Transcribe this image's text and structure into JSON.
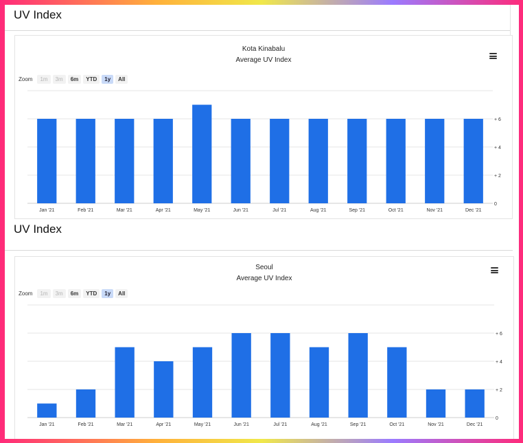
{
  "panels": [
    {
      "heading": "UV Index",
      "chart_title": "Kota Kinabalu",
      "chart_subtitle": "Average UV Index",
      "zoom": {
        "label": "Zoom",
        "buttons": [
          {
            "label": "1m",
            "state": "disabled"
          },
          {
            "label": "3m",
            "state": "disabled"
          },
          {
            "label": "6m",
            "state": "normal"
          },
          {
            "label": "YTD",
            "state": "normal"
          },
          {
            "label": "1y",
            "state": "active"
          },
          {
            "label": "All",
            "state": "normal"
          }
        ]
      }
    },
    {
      "heading": "UV Index",
      "chart_title": "Seoul",
      "chart_subtitle": "Average UV Index",
      "zoom": {
        "label": "Zoom",
        "buttons": [
          {
            "label": "1m",
            "state": "disabled"
          },
          {
            "label": "3m",
            "state": "disabled"
          },
          {
            "label": "6m",
            "state": "normal"
          },
          {
            "label": "YTD",
            "state": "normal"
          },
          {
            "label": "1y",
            "state": "active"
          },
          {
            "label": "All",
            "state": "normal"
          }
        ]
      }
    }
  ],
  "menu_icon": "hamburger-menu-icon",
  "colors": {
    "bar": "#1f6fe6",
    "grid": "#e6e6e6",
    "axis": "#cccccc"
  },
  "chart_data": [
    {
      "type": "bar",
      "title": "Kota Kinabalu",
      "subtitle": "Average UV Index",
      "categories": [
        "Jan '21",
        "Feb '21",
        "Mar '21",
        "Apr '21",
        "May '21",
        "Jun '21",
        "Jul '21",
        "Aug '21",
        "Sep '21",
        "Oct '21",
        "Nov '21",
        "Dec '21"
      ],
      "series": [
        {
          "name": "Average UV Index",
          "values": [
            6,
            6,
            6,
            6,
            7,
            6,
            6,
            6,
            6,
            6,
            6,
            6
          ]
        }
      ],
      "yticks": [
        {
          "value": 0,
          "label": "0"
        },
        {
          "value": 2,
          "label": "+ 2"
        },
        {
          "value": 4,
          "label": "+ 4"
        },
        {
          "value": 6,
          "label": "+ 6"
        }
      ],
      "ylim": [
        0,
        8
      ],
      "yaxis_side": "right",
      "grid": true
    },
    {
      "type": "bar",
      "title": "Seoul",
      "subtitle": "Average UV Index",
      "categories": [
        "Jan '21",
        "Feb '21",
        "Mar '21",
        "Apr '21",
        "May '21",
        "Jun '21",
        "Jul '21",
        "Aug '21",
        "Sep '21",
        "Oct '21",
        "Nov '21",
        "Dec '21"
      ],
      "series": [
        {
          "name": "Average UV Index",
          "values": [
            1,
            2,
            5,
            4,
            5,
            6,
            6,
            5,
            6,
            5,
            2,
            2
          ]
        }
      ],
      "yticks": [
        {
          "value": 0,
          "label": "0"
        },
        {
          "value": 2,
          "label": "+ 2"
        },
        {
          "value": 4,
          "label": "+ 4"
        },
        {
          "value": 6,
          "label": "+ 6"
        }
      ],
      "ylim": [
        0,
        8
      ],
      "yaxis_side": "right",
      "grid": true
    }
  ]
}
